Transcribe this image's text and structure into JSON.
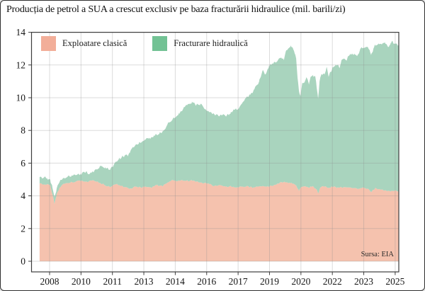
{
  "title": "Producția de petrol a SUA a crescut exclusiv pe baza fracturării hidraulice (mil. barili/zi)",
  "source": "Sursa: EIA",
  "legend": {
    "items": [
      {
        "label": "Exploatare clasică",
        "color": "#f2ae99"
      },
      {
        "label": "Fracturare hidraulică",
        "color": "#72c294"
      }
    ]
  },
  "colors": {
    "conventional_fill": "#f5c2ae",
    "fracking_fill": "#a9d4be",
    "gridline": "#8f8f8f",
    "spine": "#3d3d3d",
    "tick_label": "#161616",
    "background": "#ffffff"
  },
  "chart_data": {
    "type": "area",
    "stacked": true,
    "title": "Producția de petrol a SUA a crescut exclusiv pe baza fracturării hidraulice (mil. barili/zi)",
    "unit": "mil. barili/zi",
    "xlabel": "",
    "ylabel": "",
    "grid": true,
    "legend_position": "top-left",
    "ylim": [
      -0.65,
      14
    ],
    "y_ticks": [
      0,
      2,
      4,
      6,
      8,
      10,
      12,
      14
    ],
    "x_ticks": [
      {
        "year": 2008.0,
        "label": "2008"
      },
      {
        "year": 2009.545,
        "label": "2010"
      },
      {
        "year": 2011.091,
        "label": "2011"
      },
      {
        "year": 2012.636,
        "label": "2013"
      },
      {
        "year": 2014.182,
        "label": "2014"
      },
      {
        "year": 2015.727,
        "label": "2016"
      },
      {
        "year": 2017.273,
        "label": "2017"
      },
      {
        "year": 2018.818,
        "label": "2019"
      },
      {
        "year": 2020.364,
        "label": "2020"
      },
      {
        "year": 2021.909,
        "label": "2022"
      },
      {
        "year": 2023.455,
        "label": "2023"
      },
      {
        "year": 2025.0,
        "label": "2025"
      }
    ],
    "series": [
      {
        "name": "Exploatare clasică",
        "fill": "#f5c2ae",
        "points": [
          [
            2007.51,
            4.75
          ],
          [
            2007.86,
            4.72
          ],
          [
            2008.03,
            4.65
          ],
          [
            2008.14,
            4.1
          ],
          [
            2008.24,
            3.5
          ],
          [
            2008.35,
            4.1
          ],
          [
            2008.49,
            4.5
          ],
          [
            2008.73,
            4.75
          ],
          [
            2009.08,
            4.85
          ],
          [
            2009.53,
            4.9
          ],
          [
            2009.85,
            4.85
          ],
          [
            2010.13,
            4.95
          ],
          [
            2010.47,
            4.8
          ],
          [
            2010.82,
            4.6
          ],
          [
            2011.0,
            4.55
          ],
          [
            2011.24,
            4.7
          ],
          [
            2011.45,
            4.65
          ],
          [
            2011.69,
            4.55
          ],
          [
            2011.94,
            4.45
          ],
          [
            2012.22,
            4.55
          ],
          [
            2012.49,
            4.5
          ],
          [
            2012.74,
            4.55
          ],
          [
            2012.98,
            4.5
          ],
          [
            2013.26,
            4.65
          ],
          [
            2013.54,
            4.6
          ],
          [
            2013.78,
            4.8
          ],
          [
            2014.06,
            4.95
          ],
          [
            2014.31,
            4.9
          ],
          [
            2014.59,
            4.95
          ],
          [
            2014.83,
            4.9
          ],
          [
            2015.07,
            4.95
          ],
          [
            2015.35,
            4.8
          ],
          [
            2015.63,
            4.8
          ],
          [
            2015.87,
            4.7
          ],
          [
            2016.12,
            4.6
          ],
          [
            2016.4,
            4.65
          ],
          [
            2016.68,
            4.55
          ],
          [
            2016.92,
            4.6
          ],
          [
            2017.2,
            4.5
          ],
          [
            2017.44,
            4.55
          ],
          [
            2017.72,
            4.6
          ],
          [
            2017.97,
            4.5
          ],
          [
            2018.21,
            4.55
          ],
          [
            2018.49,
            4.6
          ],
          [
            2018.77,
            4.55
          ],
          [
            2019.01,
            4.65
          ],
          [
            2019.26,
            4.75
          ],
          [
            2019.53,
            4.85
          ],
          [
            2019.81,
            4.8
          ],
          [
            2019.99,
            4.75
          ],
          [
            2020.13,
            4.65
          ],
          [
            2020.2,
            4.45
          ],
          [
            2020.27,
            4.3
          ],
          [
            2020.37,
            4.55
          ],
          [
            2020.58,
            4.6
          ],
          [
            2020.76,
            4.5
          ],
          [
            2020.93,
            4.6
          ],
          [
            2021.14,
            4.4
          ],
          [
            2021.21,
            4.15
          ],
          [
            2021.31,
            4.5
          ],
          [
            2021.45,
            4.6
          ],
          [
            2021.7,
            4.5
          ],
          [
            2021.98,
            4.55
          ],
          [
            2022.26,
            4.5
          ],
          [
            2022.54,
            4.55
          ],
          [
            2022.82,
            4.5
          ],
          [
            2023.1,
            4.45
          ],
          [
            2023.37,
            4.5
          ],
          [
            2023.65,
            4.45
          ],
          [
            2023.82,
            4.25
          ],
          [
            2024.0,
            4.45
          ],
          [
            2024.24,
            4.4
          ],
          [
            2024.52,
            4.35
          ],
          [
            2024.76,
            4.3
          ],
          [
            2024.97,
            4.3
          ],
          [
            2025.18,
            4.25
          ]
        ]
      },
      {
        "name": "Fracturare hidraulică",
        "fill": "#a9d4be",
        "points": [
          [
            2007.51,
            0.4
          ],
          [
            2007.86,
            0.38
          ],
          [
            2008.03,
            0.35
          ],
          [
            2008.14,
            0.4
          ],
          [
            2008.24,
            0.45
          ],
          [
            2008.35,
            0.35
          ],
          [
            2008.49,
            0.35
          ],
          [
            2008.73,
            0.35
          ],
          [
            2009.08,
            0.4
          ],
          [
            2009.53,
            0.45
          ],
          [
            2009.78,
            0.6
          ],
          [
            2010.06,
            0.47
          ],
          [
            2010.33,
            0.74
          ],
          [
            2010.47,
            1.0
          ],
          [
            2010.75,
            1.11
          ],
          [
            2010.89,
            1.07
          ],
          [
            2011.1,
            1.17
          ],
          [
            2011.42,
            1.64
          ],
          [
            2011.59,
            1.84
          ],
          [
            2011.87,
            2.02
          ],
          [
            2012.11,
            2.49
          ],
          [
            2012.39,
            2.68
          ],
          [
            2012.63,
            2.82
          ],
          [
            2012.91,
            3.04
          ],
          [
            2013.16,
            3.05
          ],
          [
            2013.4,
            3.18
          ],
          [
            2013.61,
            3.34
          ],
          [
            2013.89,
            3.63
          ],
          [
            2014.13,
            3.81
          ],
          [
            2014.38,
            4.09
          ],
          [
            2014.59,
            4.45
          ],
          [
            2014.79,
            4.69
          ],
          [
            2015.0,
            4.82
          ],
          [
            2015.21,
            4.67
          ],
          [
            2015.42,
            4.82
          ],
          [
            2015.63,
            4.5
          ],
          [
            2015.87,
            4.4
          ],
          [
            2016.08,
            4.4
          ],
          [
            2016.29,
            4.27
          ],
          [
            2016.5,
            4.34
          ],
          [
            2016.68,
            4.3
          ],
          [
            2016.85,
            4.42
          ],
          [
            2017.03,
            4.71
          ],
          [
            2017.27,
            4.79
          ],
          [
            2017.44,
            5.05
          ],
          [
            2017.62,
            5.37
          ],
          [
            2017.86,
            5.61
          ],
          [
            2018.07,
            5.98
          ],
          [
            2018.31,
            6.43
          ],
          [
            2018.49,
            7.1
          ],
          [
            2018.63,
            6.87
          ],
          [
            2018.8,
            7.34
          ],
          [
            2018.94,
            7.48
          ],
          [
            2019.11,
            7.46
          ],
          [
            2019.29,
            7.64
          ],
          [
            2019.43,
            7.56
          ],
          [
            2019.53,
            7.45
          ],
          [
            2019.64,
            8.07
          ],
          [
            2019.78,
            8.24
          ],
          [
            2019.88,
            8.42
          ],
          [
            2019.99,
            8.2
          ],
          [
            2020.06,
            8.0
          ],
          [
            2020.13,
            7.75
          ],
          [
            2020.2,
            6.75
          ],
          [
            2020.27,
            6.1
          ],
          [
            2020.34,
            5.63
          ],
          [
            2020.44,
            6.33
          ],
          [
            2020.55,
            6.36
          ],
          [
            2020.65,
            6.65
          ],
          [
            2020.76,
            6.3
          ],
          [
            2020.86,
            6.74
          ],
          [
            2020.97,
            6.79
          ],
          [
            2021.07,
            6.83
          ],
          [
            2021.14,
            6.2
          ],
          [
            2021.21,
            5.8
          ],
          [
            2021.28,
            6.6
          ],
          [
            2021.38,
            6.9
          ],
          [
            2021.52,
            6.82
          ],
          [
            2021.63,
            7.37
          ],
          [
            2021.73,
            6.79
          ],
          [
            2021.84,
            7.08
          ],
          [
            2021.94,
            7.31
          ],
          [
            2022.05,
            7.41
          ],
          [
            2022.15,
            7.48
          ],
          [
            2022.26,
            7.3
          ],
          [
            2022.36,
            7.78
          ],
          [
            2022.47,
            7.86
          ],
          [
            2022.61,
            7.71
          ],
          [
            2022.71,
            8.03
          ],
          [
            2022.85,
            8.15
          ],
          [
            2022.99,
            8.23
          ],
          [
            2023.13,
            8.09
          ],
          [
            2023.3,
            8.52
          ],
          [
            2023.48,
            8.58
          ],
          [
            2023.65,
            8.65
          ],
          [
            2023.75,
            8.57
          ],
          [
            2023.82,
            8.35
          ],
          [
            2023.93,
            8.63
          ],
          [
            2024.0,
            8.8
          ],
          [
            2024.17,
            8.9
          ],
          [
            2024.34,
            8.87
          ],
          [
            2024.52,
            8.95
          ],
          [
            2024.69,
            8.79
          ],
          [
            2024.8,
            9.06
          ],
          [
            2024.87,
            9.16
          ],
          [
            2024.97,
            9.0
          ],
          [
            2025.08,
            9.03
          ],
          [
            2025.18,
            8.95
          ]
        ]
      }
    ]
  }
}
